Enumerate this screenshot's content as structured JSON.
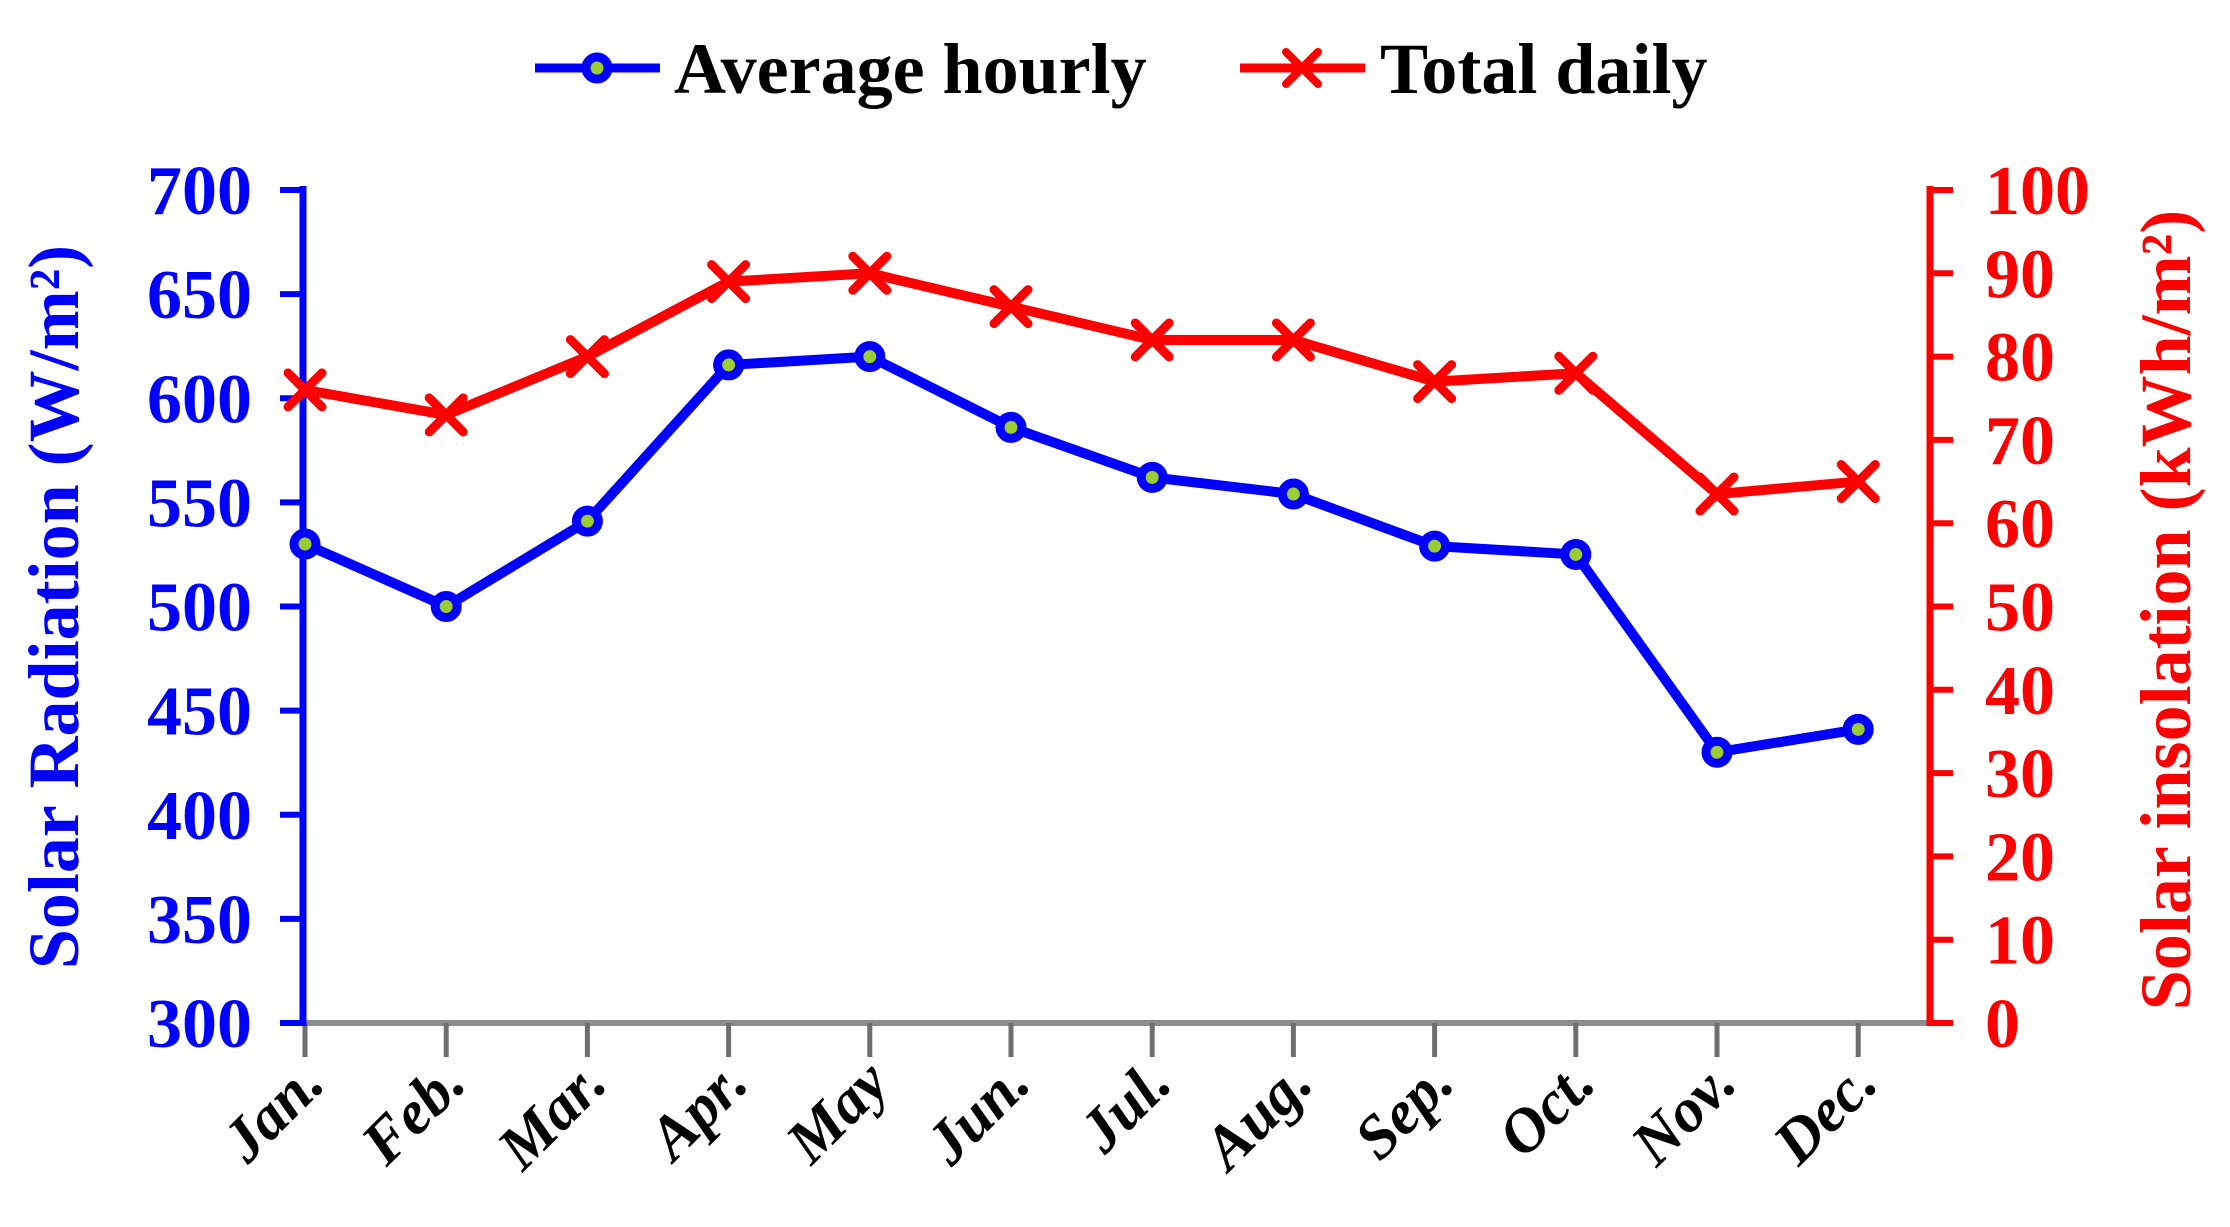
{
  "legend": {
    "position": "top-center",
    "items": [
      {
        "label": "Average hourly",
        "marker": "circle-on-line",
        "color": "#0000ff",
        "marker_fill": "#9acd32"
      },
      {
        "label": "Total daily",
        "marker": "x-on-line",
        "color": "#ff0000"
      }
    ]
  },
  "chart_data": {
    "type": "line",
    "categories": [
      "Jan.",
      "Feb.",
      "Mar.",
      "Apr.",
      "May",
      "Jun.",
      "Jul.",
      "Aug.",
      "Sep.",
      "Oct.",
      "Nov.",
      "Dec."
    ],
    "series": [
      {
        "name": "Average hourly",
        "axis": "left",
        "color": "#0000ff",
        "marker": "circle",
        "marker_fill": "#9acd32",
        "values": [
          530,
          500,
          541,
          616,
          620,
          586,
          562,
          554,
          529,
          525,
          430,
          441
        ]
      },
      {
        "name": "Total daily",
        "axis": "right",
        "color": "#ff0000",
        "marker": "x",
        "values": [
          76,
          73,
          80,
          89,
          90,
          86,
          82,
          82,
          77,
          78,
          63.5,
          65
        ]
      }
    ],
    "y_left": {
      "label": "Solar Radiation (W/m²)",
      "min": 300,
      "max": 700,
      "tick_step": 50,
      "ticks": [
        700,
        650,
        600,
        550,
        500,
        450,
        400,
        350,
        300
      ],
      "color": "#0000ff"
    },
    "y_right": {
      "label": "Solar insolation (kWh/m²)",
      "min": 0,
      "max": 100,
      "tick_step": 10,
      "ticks": [
        100,
        90,
        80,
        70,
        60,
        50,
        40,
        30,
        20,
        10,
        0
      ],
      "color": "#ff0000"
    },
    "x_axis": {
      "line_color": "#8c8c8c",
      "tick_color": "#6e6e6e",
      "label_color": "#000000"
    },
    "grid": false,
    "background": "#ffffff",
    "legend_position": "top-center"
  }
}
